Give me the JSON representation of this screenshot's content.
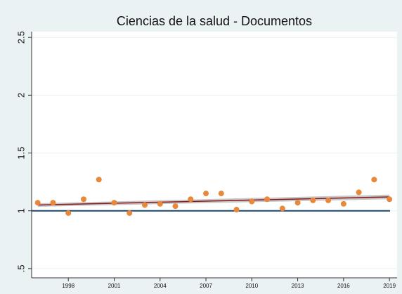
{
  "chart_data": {
    "type": "scatter",
    "title": "Ciencias de la salud - Documentos",
    "x": [
      1996,
      1997,
      1998,
      1999,
      2000,
      2001,
      2002,
      2003,
      2004,
      2005,
      2006,
      2007,
      2008,
      2009,
      2010,
      2011,
      2012,
      2013,
      2014,
      2015,
      2016,
      2017,
      2018,
      2019
    ],
    "values": [
      1.07,
      1.07,
      0.98,
      1.1,
      1.27,
      1.07,
      0.98,
      1.05,
      1.06,
      1.04,
      1.1,
      1.15,
      1.15,
      1.01,
      1.08,
      1.1,
      1.02,
      1.07,
      1.09,
      1.09,
      1.06,
      1.16,
      1.27,
      1.1
    ],
    "color": "#e8883a",
    "fit": {
      "x": [
        1996,
        2019
      ],
      "values": [
        1.05,
        1.12
      ],
      "lower": [
        1.035,
        1.1
      ],
      "upper": [
        1.065,
        1.14
      ],
      "color": "#8b1a1a",
      "band_color": "#b9b9b9"
    },
    "reference_line": {
      "value": 1,
      "color": "#1a476f"
    },
    "xlim": [
      1995.6,
      2019.5
    ],
    "xticks": [
      1998,
      2001,
      2004,
      2007,
      2010,
      2013,
      2016,
      2019
    ],
    "ylim": [
      0.42,
      2.55
    ],
    "yticks": [
      {
        "value": 0.5,
        "label": ".5"
      },
      1,
      1.5,
      2,
      2.5
    ],
    "grid": true
  }
}
